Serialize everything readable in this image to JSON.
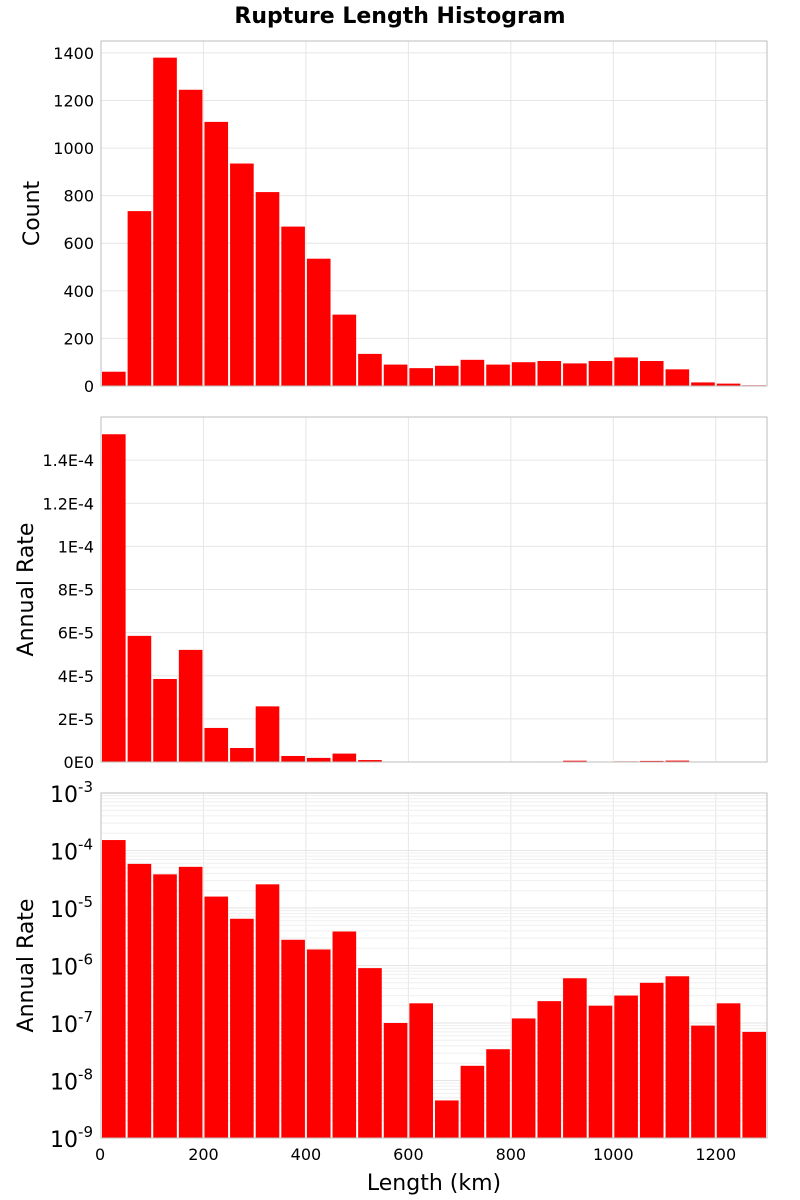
{
  "chart_data": [
    {
      "type": "bar",
      "title": "Rupture Length Histogram",
      "xlabel": "",
      "ylabel": "Count",
      "scale": "linear",
      "xlim": [
        0,
        1300
      ],
      "ylim": [
        0,
        1450
      ],
      "bin_width": 50,
      "bin_starts": [
        0,
        50,
        100,
        150,
        200,
        250,
        300,
        350,
        400,
        450,
        500,
        550,
        600,
        650,
        700,
        750,
        800,
        850,
        900,
        950,
        1000,
        1050,
        1100,
        1150,
        1200,
        1250
      ],
      "values": [
        60,
        735,
        1380,
        1245,
        1110,
        935,
        815,
        670,
        535,
        300,
        135,
        90,
        75,
        85,
        110,
        90,
        100,
        105,
        95,
        105,
        120,
        105,
        70,
        15,
        10,
        3
      ],
      "yticks": [
        0,
        200,
        400,
        600,
        800,
        1000,
        1200,
        1400
      ],
      "ytick_labels": [
        "0",
        "200",
        "400",
        "600",
        "800",
        "1000",
        "1200",
        "1400"
      ],
      "xticks": [
        0,
        200,
        400,
        600,
        800,
        1000,
        1200
      ]
    },
    {
      "type": "bar",
      "xlabel": "",
      "ylabel": "Annual Rate",
      "scale": "linear",
      "xlim": [
        0,
        1300
      ],
      "ylim": [
        0,
        0.00016
      ],
      "bin_width": 50,
      "bin_starts": [
        0,
        50,
        100,
        150,
        200,
        250,
        300,
        350,
        400,
        450,
        500,
        550,
        600,
        650,
        700,
        750,
        800,
        850,
        900,
        950,
        1000,
        1050,
        1100,
        1150,
        1200,
        1250
      ],
      "values": [
        0.000152,
        5.85e-05,
        3.85e-05,
        5.2e-05,
        1.58e-05,
        6.5e-06,
        2.58e-05,
        2.8e-06,
        1.9e-06,
        3.9e-06,
        9e-07,
        1e-07,
        2.2e-07,
        4.5e-09,
        1.8e-08,
        3.5e-08,
        1.2e-07,
        2.4e-07,
        6e-07,
        2e-07,
        3e-07,
        5e-07,
        6.5e-07,
        9e-08,
        2.2e-07,
        7e-08
      ],
      "yticks": [
        0,
        2e-05,
        4e-05,
        6e-05,
        8e-05,
        0.0001,
        0.00012,
        0.00014
      ],
      "ytick_labels": [
        "0E0",
        "2E-5",
        "4E-5",
        "6E-5",
        "8E-5",
        "1E-4",
        "1.2E-4",
        "1.4E-4"
      ],
      "xticks": [
        0,
        200,
        400,
        600,
        800,
        1000,
        1200
      ]
    },
    {
      "type": "bar",
      "xlabel": "Length (km)",
      "ylabel": "Annual Rate",
      "scale": "log",
      "xlim": [
        0,
        1300
      ],
      "ylim_exp": [
        -9,
        -3
      ],
      "bin_width": 50,
      "bin_starts": [
        0,
        50,
        100,
        150,
        200,
        250,
        300,
        350,
        400,
        450,
        500,
        550,
        600,
        650,
        700,
        750,
        800,
        850,
        900,
        950,
        1000,
        1050,
        1100,
        1150,
        1200,
        1250
      ],
      "values": [
        0.000152,
        5.85e-05,
        3.85e-05,
        5.2e-05,
        1.58e-05,
        6.5e-06,
        2.58e-05,
        2.8e-06,
        1.9e-06,
        3.9e-06,
        9e-07,
        1e-07,
        2.2e-07,
        4.5e-09,
        1.8e-08,
        3.5e-08,
        1.2e-07,
        2.4e-07,
        6e-07,
        2e-07,
        3e-07,
        5e-07,
        6.5e-07,
        9e-08,
        2.2e-07,
        7e-08
      ],
      "ytick_base": "10",
      "ytick_exponents": [
        "-9",
        "-8",
        "-7",
        "-6",
        "-5",
        "-4",
        "-3"
      ],
      "xticks": [
        0,
        200,
        400,
        600,
        800,
        1000,
        1200
      ],
      "xtick_labels": [
        "0",
        "200",
        "400",
        "600",
        "800",
        "1000",
        "1200"
      ]
    }
  ],
  "colors": {
    "bar": "#ff0000",
    "grid": "#e6e6e6",
    "frame": "#bdbdbd"
  }
}
